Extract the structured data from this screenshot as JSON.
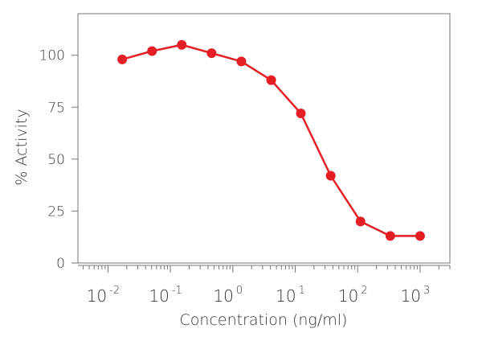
{
  "chart_data": {
    "type": "line",
    "title": "",
    "xlabel": "Concentration (ng/ml)",
    "ylabel": "% Activity",
    "xscale": "log",
    "xlim": [
      0.0033,
      3000
    ],
    "ylim": [
      0,
      120
    ],
    "x_ticks": [
      {
        "value": 0.01,
        "base": "10",
        "exp": "-2"
      },
      {
        "value": 0.1,
        "base": "10",
        "exp": "-1"
      },
      {
        "value": 1,
        "base": "10",
        "exp": "0"
      },
      {
        "value": 10,
        "base": "10",
        "exp": "1"
      },
      {
        "value": 100,
        "base": "10",
        "exp": "2"
      },
      {
        "value": 1000,
        "base": "10",
        "exp": "3"
      }
    ],
    "y_ticks": [
      "0",
      "25",
      "50",
      "75",
      "100"
    ],
    "grid": false,
    "color": "#e31e24",
    "series": [
      {
        "x": [
          0.0169,
          0.0508,
          0.152,
          0.457,
          1.37,
          4.12,
          12.3,
          37.0,
          111,
          333,
          1000
        ],
        "y": [
          98,
          102,
          105,
          101,
          97,
          88,
          72,
          42,
          20,
          13,
          13
        ]
      }
    ]
  }
}
